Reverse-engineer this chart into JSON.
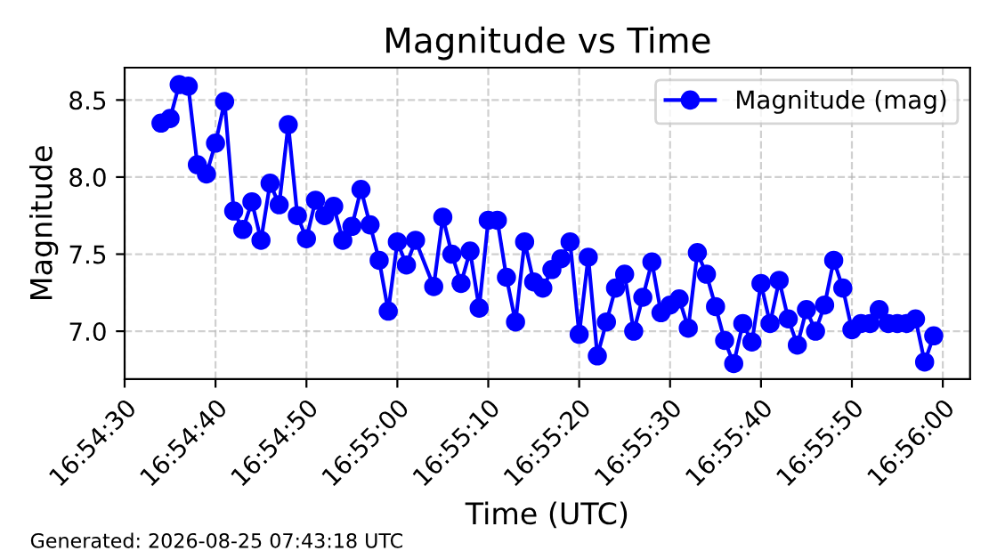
{
  "chart_data": {
    "type": "line",
    "title": "Magnitude vs Time",
    "xlabel": "Time (UTC)",
    "ylabel": "Magnitude",
    "x": [
      "2026-08-25T16:54:34",
      "2026-08-25T16:54:35",
      "2026-08-25T16:54:36",
      "2026-08-25T16:54:37",
      "2026-08-25T16:54:38",
      "2026-08-25T16:54:39",
      "2026-08-25T16:54:40",
      "2026-08-25T16:54:41",
      "2026-08-25T16:54:42",
      "2026-08-25T16:54:43",
      "2026-08-25T16:54:44",
      "2026-08-25T16:54:45",
      "2026-08-25T16:54:46",
      "2026-08-25T16:54:47",
      "2026-08-25T16:54:48",
      "2026-08-25T16:54:49",
      "2026-08-25T16:54:50",
      "2026-08-25T16:54:51",
      "2026-08-25T16:54:52",
      "2026-08-25T16:54:53",
      "2026-08-25T16:54:54",
      "2026-08-25T16:54:55",
      "2026-08-25T16:54:56",
      "2026-08-25T16:54:57",
      "2026-08-25T16:54:58",
      "2026-08-25T16:54:59",
      "2026-08-25T16:55:00",
      "2026-08-25T16:55:01",
      "2026-08-25T16:55:02",
      "2026-08-25T16:55:04",
      "2026-08-25T16:55:05",
      "2026-08-25T16:55:06",
      "2026-08-25T16:55:07",
      "2026-08-25T16:55:08",
      "2026-08-25T16:55:09",
      "2026-08-25T16:55:10",
      "2026-08-25T16:55:11",
      "2026-08-25T16:55:12",
      "2026-08-25T16:55:13",
      "2026-08-25T16:55:14",
      "2026-08-25T16:55:15",
      "2026-08-25T16:55:16",
      "2026-08-25T16:55:17",
      "2026-08-25T16:55:18",
      "2026-08-25T16:55:19",
      "2026-08-25T16:55:20",
      "2026-08-25T16:55:21",
      "2026-08-25T16:55:22",
      "2026-08-25T16:55:23",
      "2026-08-25T16:55:24",
      "2026-08-25T16:55:25",
      "2026-08-25T16:55:26",
      "2026-08-25T16:55:27",
      "2026-08-25T16:55:28",
      "2026-08-25T16:55:29",
      "2026-08-25T16:55:30",
      "2026-08-25T16:55:31",
      "2026-08-25T16:55:32",
      "2026-08-25T16:55:33",
      "2026-08-25T16:55:34",
      "2026-08-25T16:55:35",
      "2026-08-25T16:55:36",
      "2026-08-25T16:55:37",
      "2026-08-25T16:55:38",
      "2026-08-25T16:55:39",
      "2026-08-25T16:55:40",
      "2026-08-25T16:55:41",
      "2026-08-25T16:55:42",
      "2026-08-25T16:55:43",
      "2026-08-25T16:55:44",
      "2026-08-25T16:55:45",
      "2026-08-25T16:55:46",
      "2026-08-25T16:55:47",
      "2026-08-25T16:55:48",
      "2026-08-25T16:55:49",
      "2026-08-25T16:55:50",
      "2026-08-25T16:55:51",
      "2026-08-25T16:55:52",
      "2026-08-25T16:55:53",
      "2026-08-25T16:55:54",
      "2026-08-25T16:55:55",
      "2026-08-25T16:55:56",
      "2026-08-25T16:55:57",
      "2026-08-25T16:55:58",
      "2026-08-25T16:55:59"
    ],
    "series": [
      {
        "name": "Magnitude (mag)",
        "color": "#0000ff",
        "values": [
          8.35,
          8.38,
          8.6,
          8.59,
          8.08,
          8.02,
          8.22,
          8.49,
          7.78,
          7.66,
          7.84,
          7.59,
          7.96,
          7.82,
          8.34,
          7.75,
          7.6,
          7.85,
          7.75,
          7.81,
          7.59,
          7.68,
          7.92,
          7.69,
          7.46,
          7.13,
          7.58,
          7.43,
          7.59,
          7.29,
          7.74,
          7.5,
          7.31,
          7.52,
          7.15,
          7.72,
          7.72,
          7.35,
          7.06,
          7.58,
          7.32,
          7.28,
          7.4,
          7.47,
          7.58,
          6.98,
          7.48,
          6.84,
          7.06,
          7.28,
          7.37,
          7.0,
          7.22,
          7.45,
          7.12,
          7.17,
          7.21,
          7.02,
          7.51,
          7.37,
          7.16,
          6.94,
          6.79,
          7.05,
          6.93,
          7.31,
          7.05,
          7.33,
          7.08,
          6.91,
          7.14,
          7.0,
          7.17,
          7.46,
          7.28,
          7.01,
          7.05,
          7.05,
          7.14,
          7.05,
          7.05,
          7.05,
          7.08,
          6.8,
          6.97
        ]
      }
    ],
    "xlim": [
      "2026-08-25T16:54:30",
      "2026-08-25T16:56:03"
    ],
    "xticks": [
      {
        "value": "2026-08-25T16:54:30",
        "label": "16:54:30"
      },
      {
        "value": "2026-08-25T16:54:40",
        "label": "16:54:40"
      },
      {
        "value": "2026-08-25T16:54:50",
        "label": "16:54:50"
      },
      {
        "value": "2026-08-25T16:55:00",
        "label": "16:55:00"
      },
      {
        "value": "2026-08-25T16:55:10",
        "label": "16:55:10"
      },
      {
        "value": "2026-08-25T16:55:20",
        "label": "16:55:20"
      },
      {
        "value": "2026-08-25T16:55:30",
        "label": "16:55:30"
      },
      {
        "value": "2026-08-25T16:55:40",
        "label": "16:55:40"
      },
      {
        "value": "2026-08-25T16:55:50",
        "label": "16:55:50"
      },
      {
        "value": "2026-08-25T16:56:00",
        "label": "16:56:00"
      }
    ],
    "ylim": [
      6.69,
      8.71
    ],
    "yticks": [
      {
        "value": 7.0,
        "label": "7.0"
      },
      {
        "value": 7.5,
        "label": "7.5"
      },
      {
        "value": 8.0,
        "label": "8.0"
      },
      {
        "value": 8.5,
        "label": "8.5"
      }
    ],
    "grid": true,
    "legend": "top right",
    "marker": "circle",
    "line_style": "solid",
    "annotations": [
      "Generated: 2026-08-25 07:43:18 UTC"
    ]
  }
}
